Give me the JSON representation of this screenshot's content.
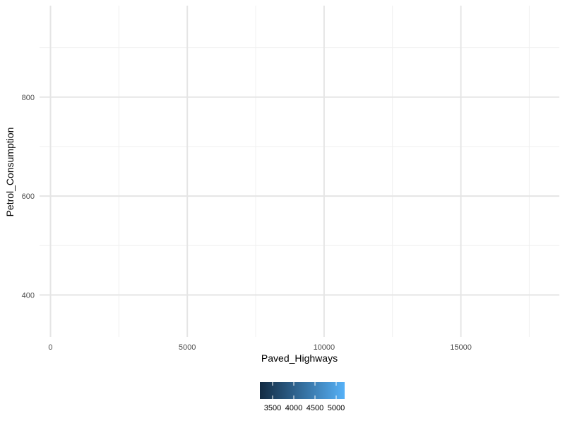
{
  "chart_data": {
    "type": "scatter",
    "title": "",
    "xlabel": "Paved_Highways",
    "ylabel": "Petrol_Consumption",
    "xlim": [
      -400,
      18600
    ],
    "ylim": [
      315,
      985
    ],
    "x_ticks": [
      0,
      5000,
      10000,
      15000
    ],
    "x_tick_labels": [
      "0",
      "5000",
      "10000",
      "15000"
    ],
    "x_minor_ticks": [
      2500,
      7500,
      12500,
      17500
    ],
    "y_ticks": [
      400,
      600,
      800
    ],
    "y_tick_labels": [
      "400",
      "600",
      "800"
    ],
    "y_minor_ticks": [
      500,
      700,
      900
    ],
    "grid": true,
    "points": [],
    "legend": {
      "placement": "bottom",
      "type": "colorbar",
      "range": [
        3200,
        5200
      ],
      "ticks": [
        3500,
        4000,
        4500,
        5000
      ],
      "tick_labels": [
        "3500",
        "4000",
        "4500",
        "5000"
      ],
      "color_low": "#132b43",
      "color_high": "#56b1f7"
    }
  }
}
